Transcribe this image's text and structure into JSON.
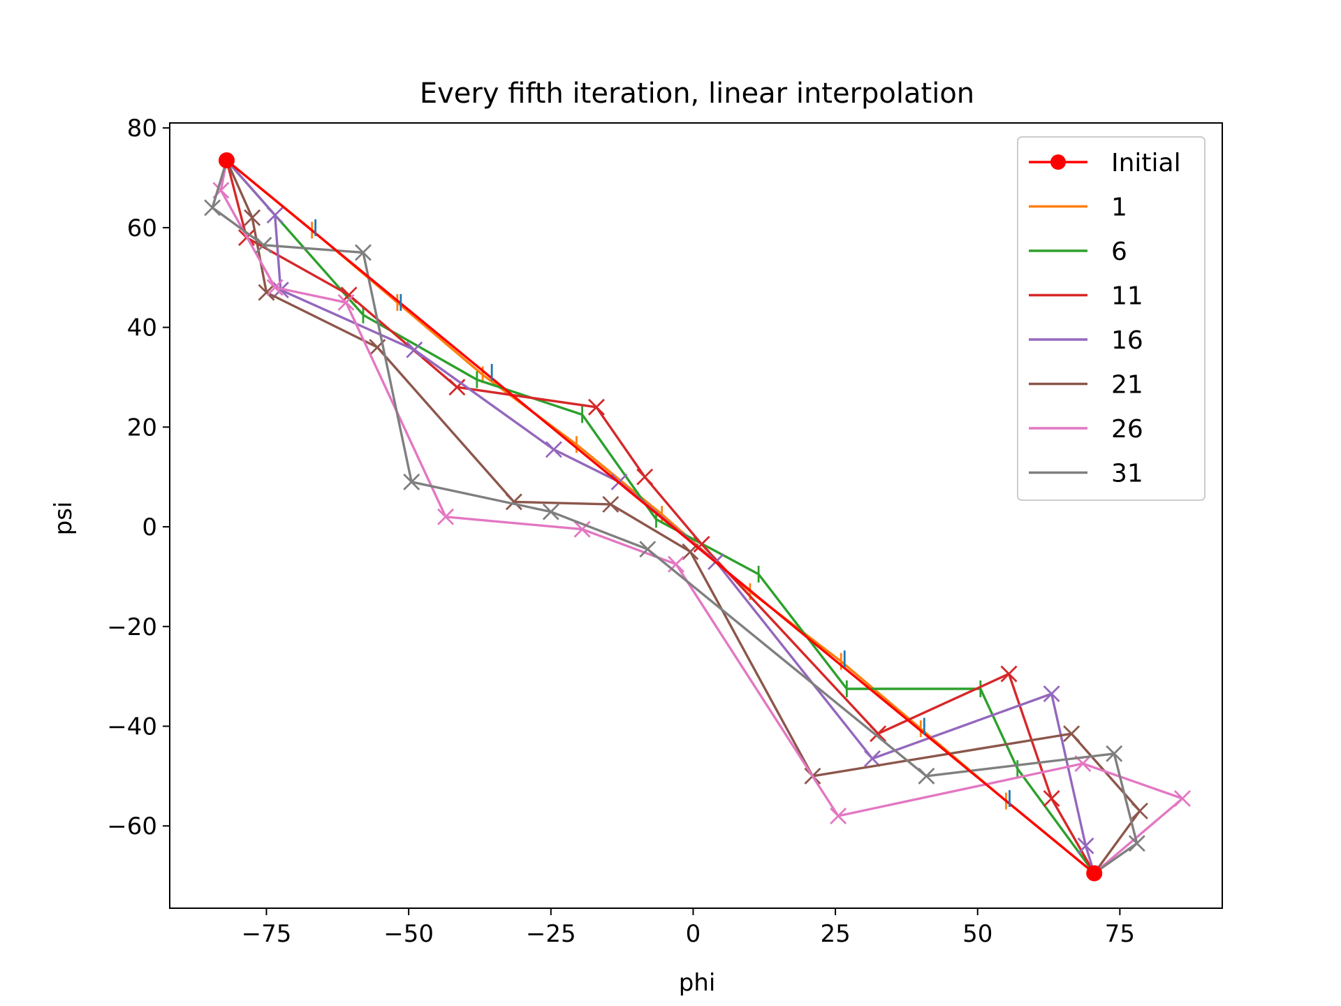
{
  "chart_data": {
    "type": "line",
    "title": "Every fifth iteration, linear interpolation",
    "xlabel": "phi",
    "ylabel": "psi",
    "xlim": [
      -92,
      93
    ],
    "ylim": [
      -76.5,
      81
    ],
    "xticks": [
      -75,
      -50,
      -25,
      0,
      25,
      50,
      75
    ],
    "xtick_labels": [
      "−75",
      "−50",
      "−25",
      "0",
      "25",
      "50",
      "75"
    ],
    "yticks": [
      -60,
      -40,
      -20,
      0,
      20,
      40,
      60,
      80
    ],
    "ytick_labels": [
      "−60",
      "−40",
      "−20",
      "0",
      "20",
      "40",
      "60",
      "80"
    ],
    "grid": false,
    "legend": "top-right",
    "extra_markers": {
      "color": "#1f77b4",
      "x": [
        -67,
        -52,
        -36,
        26,
        40,
        55
      ],
      "y": [
        60,
        45,
        31,
        -26.5,
        -40,
        -54.5
      ]
    },
    "series": [
      {
        "name": "Initial",
        "color": "#ff0000",
        "marker": "o",
        "x": [
          -82,
          70.5
        ],
        "y": [
          73.5,
          -69.5
        ]
      },
      {
        "name": "1",
        "color": "#ff7f0e",
        "marker": "|",
        "x": [
          -82,
          -67,
          -52,
          -37,
          -20.5,
          -5.5,
          10,
          26,
          40,
          55,
          70.5
        ],
        "y": [
          73.5,
          59.5,
          45,
          30.5,
          16.5,
          2.5,
          -13,
          -27,
          -40.5,
          -55,
          -69.5
        ]
      },
      {
        "name": "6",
        "color": "#2ca02c",
        "marker": "|",
        "x": [
          -82,
          -58,
          -38,
          -19.5,
          -6.5,
          11.5,
          27,
          50.5,
          57,
          70.5
        ],
        "y": [
          73.5,
          42.5,
          29.5,
          22.5,
          1.5,
          -9.5,
          -32.5,
          -32.5,
          -48.5,
          -69.5
        ]
      },
      {
        "name": "11",
        "color": "#d62728",
        "marker": "x",
        "x": [
          -82,
          -78.5,
          -60.5,
          -41.5,
          -17,
          -8.5,
          1.5,
          32.5,
          55.5,
          63,
          70.5
        ],
        "y": [
          73.5,
          58,
          46.5,
          28,
          24,
          10,
          -3.5,
          -41.5,
          -29.5,
          -54.5,
          -69.5
        ]
      },
      {
        "name": "16",
        "color": "#9467bd",
        "marker": "x",
        "x": [
          -82,
          -73.5,
          -72.5,
          -49,
          -24.5,
          -13,
          4,
          31.5,
          63,
          69,
          70.5
        ],
        "y": [
          73.5,
          62.5,
          47.5,
          35.5,
          15.5,
          9,
          -7,
          -46.5,
          -33.5,
          -64,
          -69.5
        ]
      },
      {
        "name": "21",
        "color": "#8c564b",
        "marker": "x",
        "x": [
          -82,
          -77.5,
          -75,
          -55.5,
          -31.5,
          -14.5,
          -0.5,
          21,
          66.5,
          78.5,
          70.5
        ],
        "y": [
          73.5,
          62,
          47,
          36,
          5,
          4.5,
          -5,
          -50,
          -41.5,
          -57,
          -69.5
        ]
      },
      {
        "name": "26",
        "color": "#e377c2",
        "marker": "x",
        "x": [
          -82,
          -83,
          -73.5,
          -61,
          -43.5,
          -19.5,
          -3,
          25.5,
          68.5,
          86,
          70.5
        ],
        "y": [
          73.5,
          67.5,
          48,
          45,
          2,
          -0.5,
          -7.5,
          -58,
          -47.5,
          -54.5,
          -69.5
        ]
      },
      {
        "name": "31",
        "color": "#7f7f7f",
        "marker": "x",
        "x": [
          -82,
          -84.5,
          -75.5,
          -58,
          -49.5,
          -25,
          -8,
          41,
          74,
          78,
          70.5
        ],
        "y": [
          73.5,
          64,
          56.5,
          55,
          9,
          3,
          -4.5,
          -50,
          -45.5,
          -63.5,
          -69.5
        ]
      }
    ]
  }
}
